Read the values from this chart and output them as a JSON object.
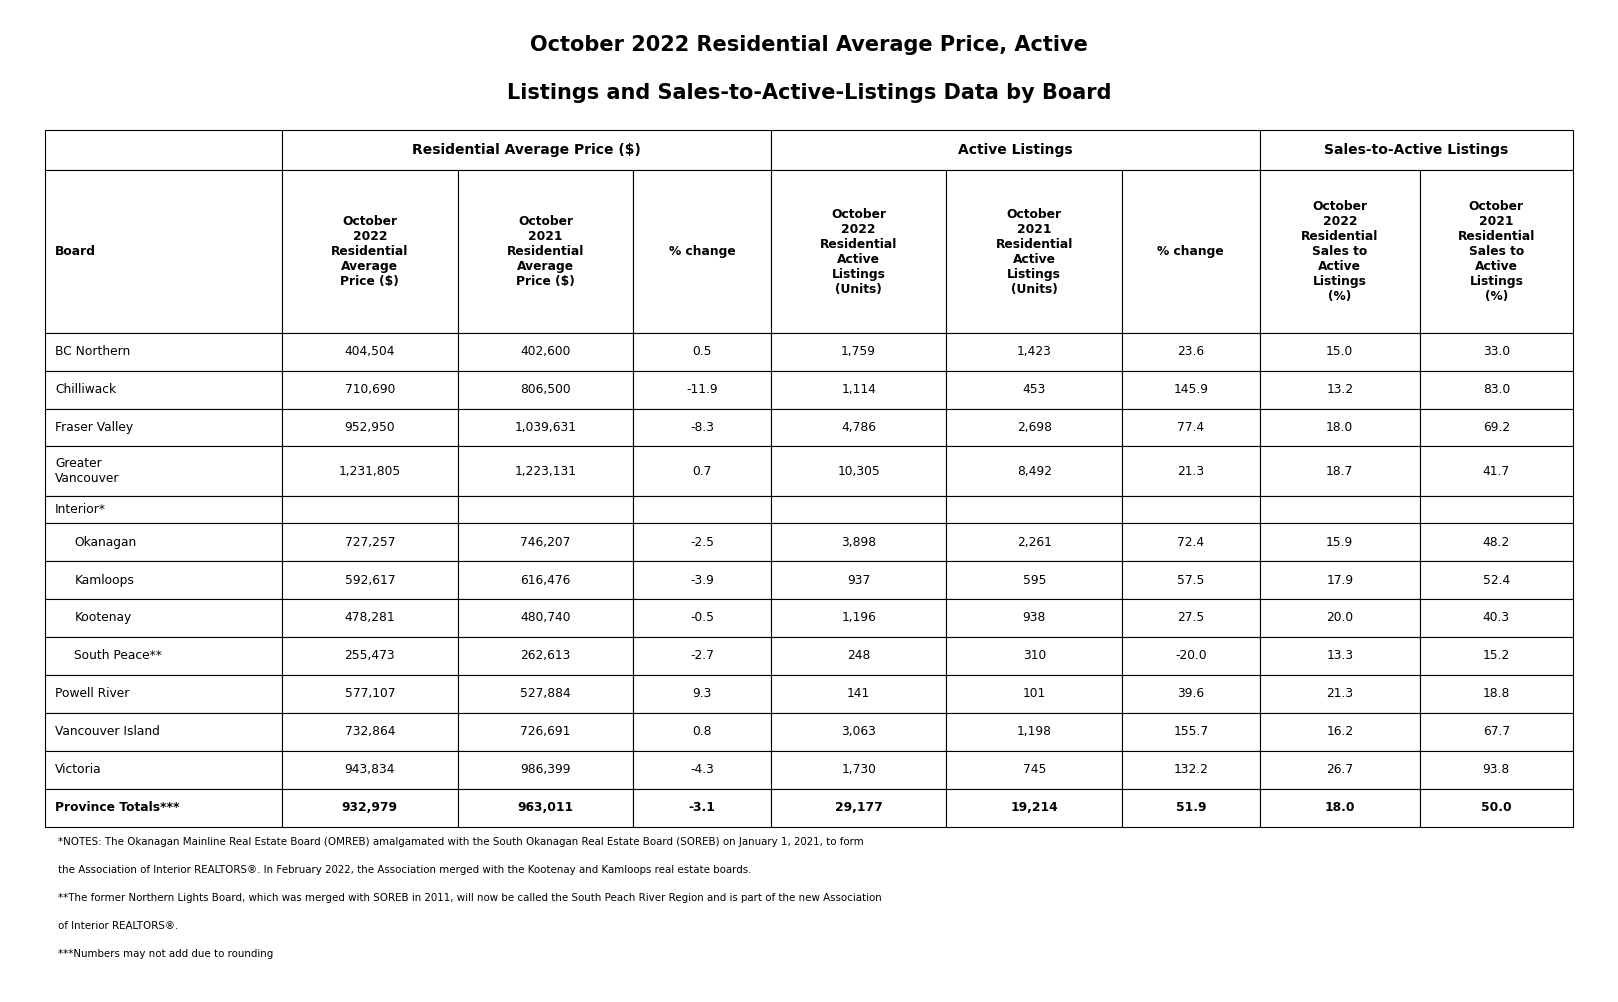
{
  "title_line1": "October 2022 Residential Average Price, Active",
  "title_line2": "Listings and Sales-to-Active-Listings Data by Board",
  "title_fontsize": 15,
  "background_color": "#ffffff",
  "text_color": "#000000",
  "group_spans": [
    [
      0,
      1,
      ""
    ],
    [
      1,
      4,
      "Residential Average Price ($)"
    ],
    [
      4,
      7,
      "Active Listings"
    ],
    [
      7,
      9,
      "Sales-to-Active Listings"
    ]
  ],
  "col_headers": [
    "Board",
    "October\n2022\nResidential\nAverage\nPrice ($)",
    "October\n2021\nResidential\nAverage\nPrice ($)",
    "% change",
    "October\n2022\nResidential\nActive\nListings\n(Units)",
    "October\n2021\nResidential\nActive\nListings\n(Units)",
    "% change",
    "October\n2022\nResidential\nSales to\nActive\nListings\n(%)",
    "October\n2021\nResidential\nSales to\nActive\nListings\n(%)"
  ],
  "rows": [
    [
      "BC Northern",
      "404,504",
      "402,600",
      "0.5",
      "1,759",
      "1,423",
      "23.6",
      "15.0",
      "33.0",
      false
    ],
    [
      "Chilliwack",
      "710,690",
      "806,500",
      "-11.9",
      "1,114",
      "453",
      "145.9",
      "13.2",
      "83.0",
      false
    ],
    [
      "Fraser Valley",
      "952,950",
      "1,039,631",
      "-8.3",
      "4,786",
      "2,698",
      "77.4",
      "18.0",
      "69.2",
      false
    ],
    [
      "Greater\nVancouver",
      "1,231,805",
      "1,223,131",
      "0.7",
      "10,305",
      "8,492",
      "21.3",
      "18.7",
      "41.7",
      false
    ],
    [
      "Interior*",
      "",
      "",
      "",
      "",
      "",
      "",
      "",
      "",
      false
    ],
    [
      "Okanagan",
      "727,257",
      "746,207",
      "-2.5",
      "3,898",
      "2,261",
      "72.4",
      "15.9",
      "48.2",
      true
    ],
    [
      "Kamloops",
      "592,617",
      "616,476",
      "-3.9",
      "937",
      "595",
      "57.5",
      "17.9",
      "52.4",
      true
    ],
    [
      "Kootenay",
      "478,281",
      "480,740",
      "-0.5",
      "1,196",
      "938",
      "27.5",
      "20.0",
      "40.3",
      true
    ],
    [
      "South Peace**",
      "255,473",
      "262,613",
      "-2.7",
      "248",
      "310",
      "-20.0",
      "13.3",
      "15.2",
      true
    ],
    [
      "Powell River",
      "577,107",
      "527,884",
      "9.3",
      "141",
      "101",
      "39.6",
      "21.3",
      "18.8",
      false
    ],
    [
      "Vancouver Island",
      "732,864",
      "726,691",
      "0.8",
      "3,063",
      "1,198",
      "155.7",
      "16.2",
      "67.7",
      false
    ],
    [
      "Victoria",
      "943,834",
      "986,399",
      "-4.3",
      "1,730",
      "745",
      "132.2",
      "26.7",
      "93.8",
      false
    ],
    [
      "Province Totals***",
      "932,979",
      "963,011",
      "-3.1",
      "29,177",
      "19,214",
      "51.9",
      "18.0",
      "50.0",
      false
    ]
  ],
  "bold_last_row": true,
  "col_widths_rel": [
    1.55,
    1.15,
    1.15,
    0.9,
    1.15,
    1.15,
    0.9,
    1.05,
    1.0
  ],
  "notes": [
    "*NOTES: The Okanagan Mainline Real Estate Board (OMREB) amalgamated with the South Okanagan Real Estate Board (SOREB) on January 1, 2021, to form the Association of Interior REALTORS®. In February 2022, the Association merged with the Kootenay and Kamloops real estate boards.",
    "**The former Northern Lights Board, which was merged with SOREB in 2011, will now be called the South Peach River Region and is part of the new Association of Interior REALTORS®.",
    "***Numbers may not add due to rounding"
  ]
}
